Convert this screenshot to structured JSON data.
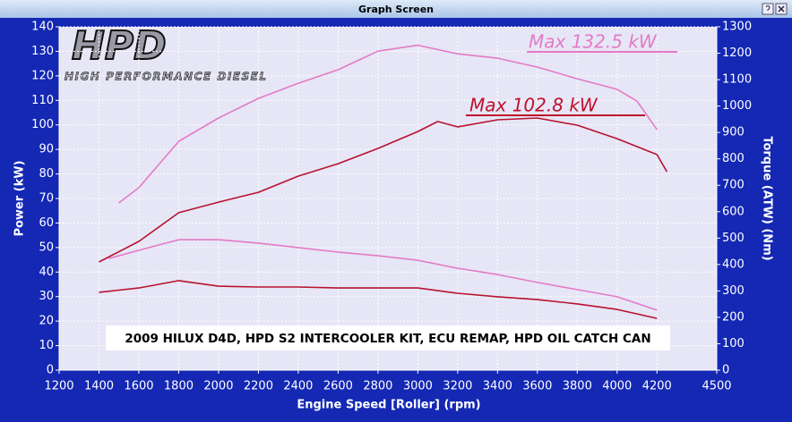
{
  "window_title": "Graph Screen",
  "logo": {
    "mark": "HPD",
    "tagline": "HIGH PERFORMANCE DIESEL"
  },
  "chart_data": {
    "type": "line",
    "xlabel": "Engine Speed [Roller] (rpm)",
    "ylabel": "Power (kW)",
    "y2label": "Torque (ATW) (Nm)",
    "xlim": [
      1200,
      4500
    ],
    "xticks": [
      1200,
      1400,
      1600,
      1800,
      2000,
      2200,
      2400,
      2600,
      2800,
      3000,
      3200,
      3400,
      3600,
      3800,
      4000,
      4200,
      4500
    ],
    "ylim": [
      0,
      140
    ],
    "yticks": [
      0,
      10,
      20,
      30,
      40,
      50,
      60,
      70,
      80,
      90,
      100,
      110,
      120,
      130,
      140
    ],
    "y2lim": [
      0,
      1300
    ],
    "y2ticks": [
      0,
      100,
      200,
      300,
      400,
      500,
      600,
      700,
      800,
      900,
      1000,
      1100,
      1200,
      1300
    ],
    "grid": true,
    "series": [
      {
        "color": "#e47ac6",
        "axis": "y",
        "x": [
          1500,
          1600,
          1800,
          2000,
          2200,
          2400,
          2600,
          2800,
          3000,
          3200,
          3400,
          3600,
          3800,
          4000,
          4100,
          4200
        ],
        "values": [
          68.2,
          74.4,
          93.3,
          102.8,
          110.8,
          117,
          122.5,
          130.1,
          132.5,
          129,
          127.2,
          123.6,
          118.8,
          114.5,
          109.7,
          98.1
        ]
      },
      {
        "color": "#b8122e",
        "axis": "y",
        "x": [
          1400,
          1600,
          1800,
          2000,
          2200,
          2400,
          2600,
          2800,
          3000,
          3100,
          3200,
          3400,
          3600,
          3800,
          4000,
          4200,
          4250
        ],
        "values": [
          44.1,
          52.5,
          64.2,
          68.5,
          72.5,
          79.1,
          84.2,
          90.4,
          97.3,
          101.4,
          99.2,
          102.1,
          102.8,
          99.9,
          94.4,
          87.9,
          80.9
        ]
      },
      {
        "color": "#e47ac6",
        "axis": "y2",
        "x": [
          1450,
          1600,
          1800,
          2000,
          2200,
          2400,
          2600,
          2800,
          3000,
          3200,
          3400,
          3600,
          3800,
          4000,
          4200
        ],
        "values": [
          423,
          454,
          494,
          494,
          481,
          464,
          447,
          433,
          416,
          386,
          362,
          332,
          305,
          278,
          227
        ]
      },
      {
        "color": "#b8122e",
        "axis": "y2",
        "x": [
          1400,
          1600,
          1800,
          2000,
          2200,
          2400,
          2600,
          2800,
          3000,
          3200,
          3400,
          3600,
          3800,
          4000,
          4200
        ],
        "values": [
          295,
          311,
          339,
          318,
          315,
          315,
          311,
          311,
          311,
          291,
          278,
          267,
          251,
          230,
          196
        ]
      }
    ],
    "annotations": [
      {
        "text": "Max 132.5 kW",
        "color": "#e47ac6"
      },
      {
        "text": "Max 102.8 kW",
        "color": "#c0102a"
      }
    ],
    "banner": "2009 HILUX D4D, HPD S2 INTERCOOLER KIT, ECU REMAP, HPD OIL CATCH CAN"
  }
}
